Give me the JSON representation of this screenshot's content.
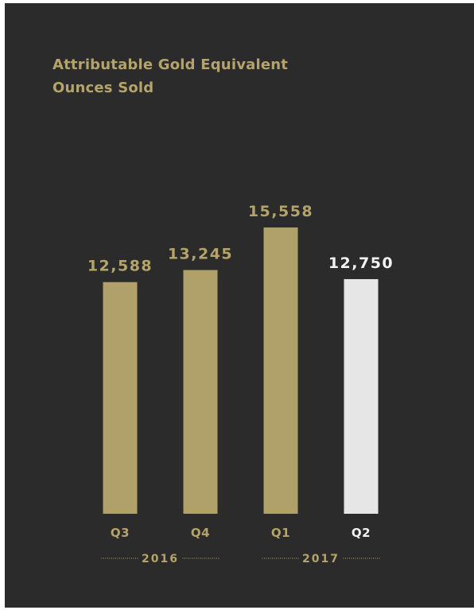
{
  "chart_data": {
    "type": "bar",
    "title_lines": [
      "Attributable Gold Equivalent",
      "Ounces Sold"
    ],
    "categories": [
      "Q3",
      "Q4",
      "Q1",
      "Q2"
    ],
    "values": [
      12588,
      13245,
      15558,
      12750
    ],
    "value_labels": [
      "12,588",
      "13,245",
      "15,558",
      "12,750"
    ],
    "highlight_index": 3,
    "groups": [
      {
        "label": "2016",
        "categories": [
          "Q3",
          "Q4"
        ]
      },
      {
        "label": "2017",
        "categories": [
          "Q1",
          "Q2"
        ]
      }
    ],
    "colors": {
      "bar": "#b0a06a",
      "highlight_bar": "#e6e6e6",
      "label": "#b4a46a",
      "highlight_label": "#f2f2f2",
      "background": "#2b2b2b"
    },
    "grid": false,
    "legend": "none"
  }
}
